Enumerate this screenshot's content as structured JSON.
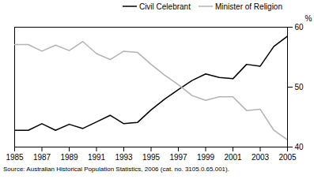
{
  "chart_data": {
    "type": "line",
    "y_label": "%",
    "caption": "Source: Australian Historical Population Statistics, 2006 (cat. no. 3105.0.65.001).",
    "x": [
      1985,
      1986,
      1987,
      1988,
      1989,
      1990,
      1991,
      1992,
      1993,
      1994,
      1995,
      1996,
      1997,
      1998,
      1999,
      2000,
      2001,
      2002,
      2003,
      2004,
      2005
    ],
    "series": [
      {
        "name": "Civil Celebrant",
        "color": "#000000",
        "values": [
          42.8,
          42.8,
          43.9,
          42.8,
          43.8,
          43.1,
          44.2,
          45.3,
          43.9,
          44.1,
          46.2,
          48.0,
          49.6,
          51.1,
          52.2,
          51.6,
          51.4,
          53.8,
          53.5,
          56.8,
          58.5
        ]
      },
      {
        "name": "Minister of Religion",
        "color": "#b3b3b3",
        "values": [
          57.1,
          57.1,
          56.0,
          57.0,
          56.1,
          57.6,
          55.6,
          54.6,
          56.0,
          55.8,
          53.8,
          52.0,
          50.4,
          48.6,
          47.8,
          48.4,
          48.4,
          46.1,
          46.3,
          42.8,
          41.2
        ]
      }
    ],
    "xlim": [
      1985,
      2005
    ],
    "xticks": [
      1985,
      1987,
      1989,
      1991,
      1993,
      1995,
      1997,
      1999,
      2001,
      2003,
      2005
    ],
    "ylim": [
      40,
      60
    ],
    "yticks": [
      40,
      50,
      60
    ],
    "legend": "top-right"
  }
}
